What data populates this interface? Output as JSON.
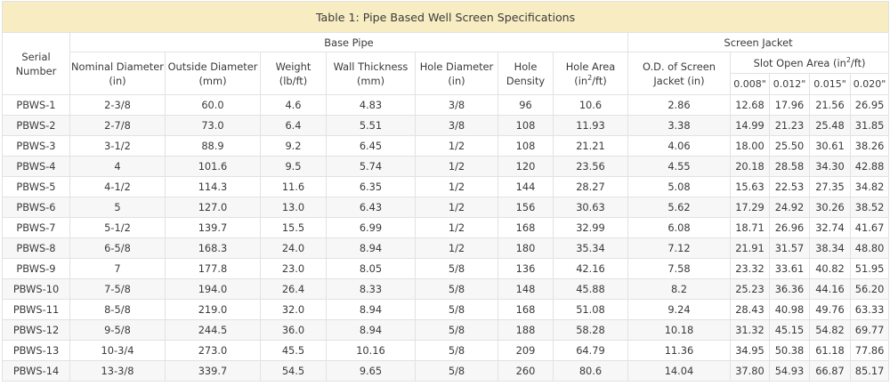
{
  "caption": "Table 1: Pipe Based Well Screen Specifications",
  "headers": {
    "serial": "Serial Number",
    "base_pipe": "Base Pipe",
    "screen_jacket": "Screen Jacket",
    "nominal_diameter": "Nominal Diameter (in)",
    "outside_diameter": "Outside Diameter (mm)",
    "weight": "Weight (lb/ft)",
    "wall_thickness": "Wall Thickness (mm)",
    "hole_diameter": "Hole Diameter (in)",
    "hole_density": "Hole Density",
    "hole_area_prefix": "Hole Area (in",
    "hole_area_sup": "2",
    "hole_area_suffix": "/ft)",
    "od_screen_jacket": "O.D. of Screen Jacket (in)",
    "slot_open_area_prefix": "Slot Open Area (in",
    "slot_open_area_sup": "2",
    "slot_open_area_suffix": "/ft)",
    "slot_sizes": [
      "0.008\"",
      "0.012\"",
      "0.015\"",
      "0.020\""
    ]
  },
  "rows": [
    {
      "serial": "PBWS-1",
      "nominal": "2-3/8",
      "od": "60.0",
      "weight": "4.6",
      "wall": "4.83",
      "hole_dia": "3/8",
      "density": "96",
      "hole_area": "10.6",
      "jacket_od": "2.86",
      "s008": "12.68",
      "s012": "17.96",
      "s015": "21.56",
      "s020": "26.95"
    },
    {
      "serial": "PBWS-2",
      "nominal": "2-7/8",
      "od": "73.0",
      "weight": "6.4",
      "wall": "5.51",
      "hole_dia": "3/8",
      "density": "108",
      "hole_area": "11.93",
      "jacket_od": "3.38",
      "s008": "14.99",
      "s012": "21.23",
      "s015": "25.48",
      "s020": "31.85"
    },
    {
      "serial": "PBWS-3",
      "nominal": "3-1/2",
      "od": "88.9",
      "weight": "9.2",
      "wall": "6.45",
      "hole_dia": "1/2",
      "density": "108",
      "hole_area": "21.21",
      "jacket_od": "4.06",
      "s008": "18.00",
      "s012": "25.50",
      "s015": "30.61",
      "s020": "38.26"
    },
    {
      "serial": "PBWS-4",
      "nominal": "4",
      "od": "101.6",
      "weight": "9.5",
      "wall": "5.74",
      "hole_dia": "1/2",
      "density": "120",
      "hole_area": "23.56",
      "jacket_od": "4.55",
      "s008": "20.18",
      "s012": "28.58",
      "s015": "34.30",
      "s020": "42.88"
    },
    {
      "serial": "PBWS-5",
      "nominal": "4-1/2",
      "od": "114.3",
      "weight": "11.6",
      "wall": "6.35",
      "hole_dia": "1/2",
      "density": "144",
      "hole_area": "28.27",
      "jacket_od": "5.08",
      "s008": "15.63",
      "s012": "22.53",
      "s015": "27.35",
      "s020": "34.82"
    },
    {
      "serial": "PBWS-6",
      "nominal": "5",
      "od": "127.0",
      "weight": "13.0",
      "wall": "6.43",
      "hole_dia": "1/2",
      "density": "156",
      "hole_area": "30.63",
      "jacket_od": "5.62",
      "s008": "17.29",
      "s012": "24.92",
      "s015": "30.26",
      "s020": "38.52"
    },
    {
      "serial": "PBWS-7",
      "nominal": "5-1/2",
      "od": "139.7",
      "weight": "15.5",
      "wall": "6.99",
      "hole_dia": "1/2",
      "density": "168",
      "hole_area": "32.99",
      "jacket_od": "6.08",
      "s008": "18.71",
      "s012": "26.96",
      "s015": "32.74",
      "s020": "41.67"
    },
    {
      "serial": "PBWS-8",
      "nominal": "6-5/8",
      "od": "168.3",
      "weight": "24.0",
      "wall": "8.94",
      "hole_dia": "1/2",
      "density": "180",
      "hole_area": "35.34",
      "jacket_od": "7.12",
      "s008": "21.91",
      "s012": "31.57",
      "s015": "38.34",
      "s020": "48.80"
    },
    {
      "serial": "PBWS-9",
      "nominal": "7",
      "od": "177.8",
      "weight": "23.0",
      "wall": "8.05",
      "hole_dia": "5/8",
      "density": "136",
      "hole_area": "42.16",
      "jacket_od": "7.58",
      "s008": "23.32",
      "s012": "33.61",
      "s015": "40.82",
      "s020": "51.95"
    },
    {
      "serial": "PBWS-10",
      "nominal": "7-5/8",
      "od": "194.0",
      "weight": "26.4",
      "wall": "8.33",
      "hole_dia": "5/8",
      "density": "148",
      "hole_area": "45.88",
      "jacket_od": "8.2",
      "s008": "25.23",
      "s012": "36.36",
      "s015": "44.16",
      "s020": "56.20"
    },
    {
      "serial": "PBWS-11",
      "nominal": "8-5/8",
      "od": "219.0",
      "weight": "32.0",
      "wall": "8.94",
      "hole_dia": "5/8",
      "density": "168",
      "hole_area": "51.08",
      "jacket_od": "9.24",
      "s008": "28.43",
      "s012": "40.98",
      "s015": "49.76",
      "s020": "63.33"
    },
    {
      "serial": "PBWS-12",
      "nominal": "9-5/8",
      "od": "244.5",
      "weight": "36.0",
      "wall": "8.94",
      "hole_dia": "5/8",
      "density": "188",
      "hole_area": "58.28",
      "jacket_od": "10.18",
      "s008": "31.32",
      "s012": "45.15",
      "s015": "54.82",
      "s020": "69.77"
    },
    {
      "serial": "PBWS-13",
      "nominal": "10-3/4",
      "od": "273.0",
      "weight": "45.5",
      "wall": "10.16",
      "hole_dia": "5/8",
      "density": "209",
      "hole_area": "64.79",
      "jacket_od": "11.36",
      "s008": "34.95",
      "s012": "50.38",
      "s015": "61.18",
      "s020": "77.86"
    },
    {
      "serial": "PBWS-14",
      "nominal": "13-3/8",
      "od": "339.7",
      "weight": "54.5",
      "wall": "9.65",
      "hole_dia": "5/8",
      "density": "260",
      "hole_area": "80.6",
      "jacket_od": "14.04",
      "s008": "37.80",
      "s012": "54.93",
      "s015": "66.87",
      "s020": "85.17"
    }
  ],
  "colors": {
    "caption_bg": "#f8edc2",
    "stripe_bg": "#f7f7f7",
    "border": "#e2e2e2",
    "text": "#3a3a3a"
  }
}
